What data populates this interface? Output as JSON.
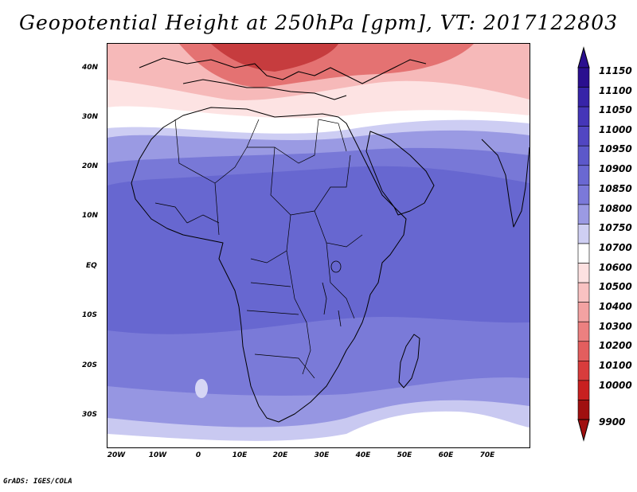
{
  "title": "Geopotential Height at 250hPa [gpm], VT: 2017122803",
  "footer": "GrADS: IGES/COLA",
  "latitude_labels": [
    "40N",
    "30N",
    "20N",
    "10N",
    "EQ",
    "10S",
    "20S",
    "30S"
  ],
  "longitude_labels": [
    "20W",
    "10W",
    "0",
    "10E",
    "20E",
    "30E",
    "40E",
    "50E",
    "60E",
    "70E"
  ],
  "colorbar": {
    "levels": [
      "11150",
      "11100",
      "11050",
      "11000",
      "10950",
      "10900",
      "10850",
      "10800",
      "10750",
      "10700",
      "10600",
      "10500",
      "10400",
      "10300",
      "10200",
      "10100",
      "10000",
      "9900"
    ],
    "colors": [
      "#2a0f8f",
      "#3724a8",
      "#4536b8",
      "#5146c2",
      "#5c58ca",
      "#6a68d2",
      "#7b79d9",
      "#9b9ae3",
      "#cfcff3",
      "#ffffff",
      "#fde1e1",
      "#f9c2c2",
      "#f3a2a2",
      "#ec8080",
      "#e35e5e",
      "#d83c3c",
      "#c82020",
      "#a01010"
    ]
  },
  "map": {
    "domain": {
      "lon_min": -23,
      "lon_max": 80,
      "lat_min": -37,
      "lat_max": 45
    },
    "field_colors": {
      "deep_red": "#c4383a",
      "red": "#e06868",
      "pink": "#f4b4b4",
      "light_pink": "#fde8e8",
      "white": "#ffffff",
      "lavender": "#c8c8f0",
      "light_blue": "#8f8fe0",
      "mid_blue": "#7272d6",
      "blue": "#6464cf"
    }
  }
}
